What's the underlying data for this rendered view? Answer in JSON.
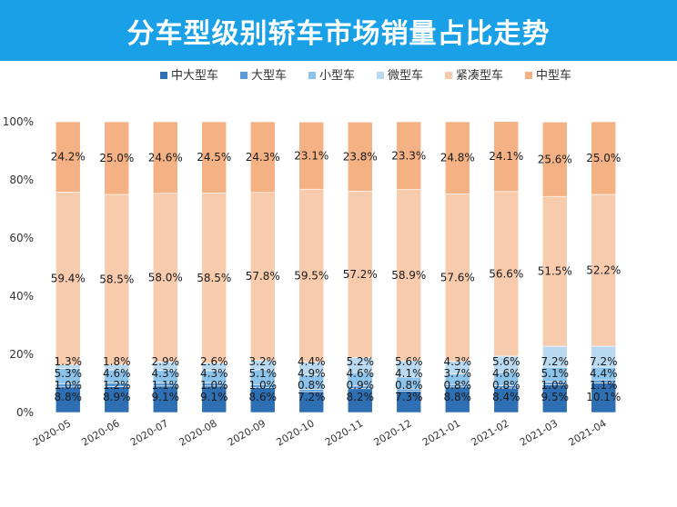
{
  "header": {
    "title": "分车型级别轿车市场销量占比走势"
  },
  "colors": {
    "banner": "#1aa0e6",
    "中大型车": "#2e6fb3",
    "大型车": "#5b9bd5",
    "小型车": "#8cc3ea",
    "微型车": "#b9d9f0",
    "紧凑型车": "#f8cbad",
    "中型车": "#f4b183"
  },
  "chart_data": {
    "type": "bar",
    "stacked": true,
    "title": "分车型级别轿车市场销量占比走势",
    "categories": [
      "2020-05",
      "2020-06",
      "2020-07",
      "2020-08",
      "2020-09",
      "2020-10",
      "2020-11",
      "2020-12",
      "2021-01",
      "2021-02",
      "2021-03",
      "2021-04"
    ],
    "series": [
      {
        "name": "中大型车",
        "values": [
          8.8,
          8.9,
          9.1,
          9.1,
          8.6,
          7.2,
          8.2,
          7.3,
          8.8,
          8.4,
          9.5,
          10.1
        ]
      },
      {
        "name": "大型车",
        "values": [
          1.0,
          1.2,
          1.1,
          1.0,
          1.0,
          0.8,
          0.9,
          0.8,
          0.8,
          0.8,
          1.0,
          1.1
        ]
      },
      {
        "name": "小型车",
        "values": [
          5.3,
          4.6,
          4.3,
          4.3,
          5.1,
          4.9,
          4.6,
          4.1,
          3.7,
          4.6,
          5.1,
          4.4
        ]
      },
      {
        "name": "微型车",
        "values": [
          1.3,
          1.8,
          2.9,
          2.6,
          3.2,
          4.4,
          5.2,
          5.6,
          4.3,
          5.6,
          7.2,
          7.2
        ]
      },
      {
        "name": "紧凑型车",
        "values": [
          59.4,
          58.5,
          58.0,
          58.5,
          57.8,
          59.5,
          57.2,
          58.9,
          57.6,
          56.6,
          51.5,
          52.2
        ]
      },
      {
        "name": "中型车",
        "values": [
          24.2,
          25.0,
          24.6,
          24.5,
          24.3,
          23.1,
          23.8,
          23.3,
          24.8,
          24.1,
          25.6,
          25.0
        ]
      }
    ],
    "ylim": [
      0,
      100
    ],
    "yticks": [
      "0%",
      "20%",
      "40%",
      "60%",
      "80%",
      "100%"
    ],
    "label_suffix": "%",
    "legend_position": "top",
    "grid": false
  }
}
